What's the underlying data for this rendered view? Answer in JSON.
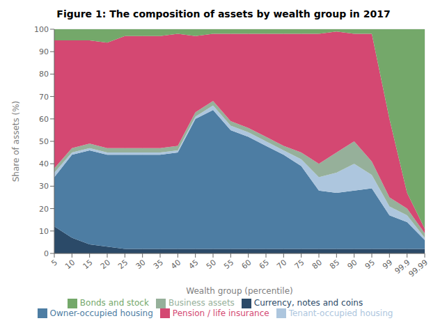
{
  "chart_data": {
    "type": "area",
    "title": "Figure 1: The composition of assets by wealth group in 2017",
    "xlabel": "Wealth group (percentile)",
    "ylabel": "Share of assets (%)",
    "categories": [
      "5",
      "10",
      "15",
      "20",
      "25",
      "30",
      "35",
      "40",
      "45",
      "50",
      "55",
      "60",
      "65",
      "70",
      "75",
      "80",
      "85",
      "90",
      "95",
      "99",
      "99.9",
      "99.99"
    ],
    "series": [
      {
        "name": "Currency, notes and coins",
        "color": "#2b4a68",
        "values": [
          12,
          7,
          4,
          3,
          2,
          2,
          2,
          2,
          2,
          2,
          2,
          2,
          2,
          2,
          2,
          2,
          2,
          2,
          2,
          2,
          2,
          2
        ]
      },
      {
        "name": "Owner-occupied housing",
        "color": "#4d7da3",
        "values": [
          22,
          37,
          42,
          41,
          42,
          42,
          42,
          43,
          58,
          62,
          53,
          50,
          46,
          42,
          37,
          26,
          25,
          26,
          27,
          15,
          12,
          4
        ]
      },
      {
        "name": "Tenant-occupied housing",
        "color": "#adc6de",
        "values": [
          2,
          1,
          1,
          1,
          1,
          1,
          1,
          1,
          1,
          2,
          2,
          2,
          2,
          2,
          3,
          6,
          9,
          12,
          6,
          4,
          3,
          1
        ]
      },
      {
        "name": "Business assets",
        "color": "#96b09a",
        "values": [
          2,
          2,
          2,
          2,
          2,
          2,
          2,
          2,
          2,
          2,
          2,
          2,
          2,
          2,
          3,
          6,
          9,
          10,
          6,
          4,
          3,
          2
        ]
      },
      {
        "name": "Pension / life insurance",
        "color": "#d44872",
        "values": [
          57,
          48,
          46,
          47,
          50,
          50,
          50,
          50,
          34,
          30,
          39,
          42,
          46,
          50,
          53,
          58,
          54,
          48,
          57,
          35,
          7,
          2
        ]
      },
      {
        "name": "Bonds and stock",
        "color": "#74a86a",
        "values": [
          5,
          5,
          5,
          6,
          3,
          3,
          3,
          2,
          3,
          2,
          2,
          2,
          2,
          2,
          2,
          2,
          1,
          2,
          2,
          40,
          73,
          89
        ]
      }
    ],
    "ylim": [
      0,
      100
    ],
    "yticks": [
      0,
      10,
      20,
      30,
      40,
      50,
      60,
      70,
      80,
      90,
      100
    ],
    "stacked": true,
    "grid": true,
    "legend": "bottom"
  }
}
